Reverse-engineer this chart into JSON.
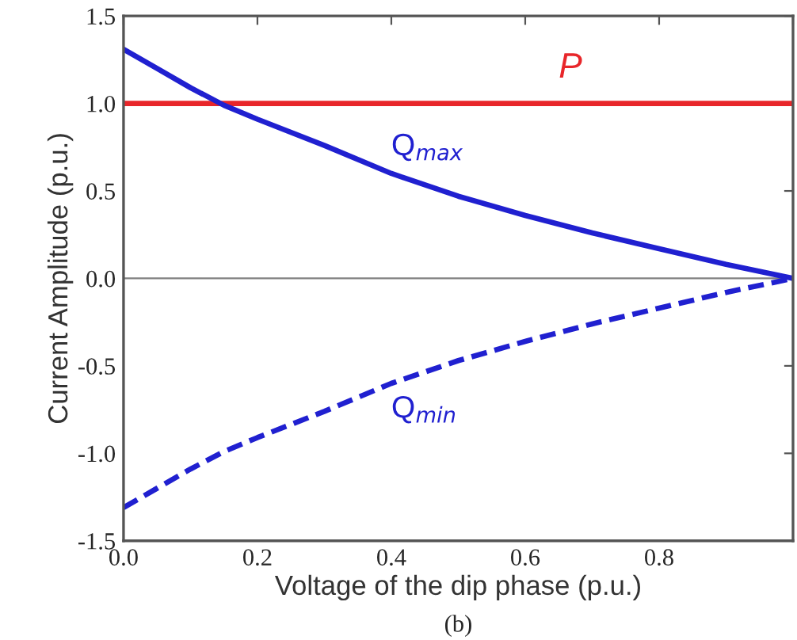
{
  "chart_data": {
    "type": "line",
    "xlabel": "Voltage of the dip phase (p.u.)",
    "ylabel": "Current Amplitude (p.u.)",
    "annotations": [
      "(b)"
    ],
    "x": [
      0,
      0.05,
      0.1,
      0.15,
      0.2,
      0.3,
      0.4,
      0.5,
      0.6,
      0.7,
      0.8,
      0.9,
      1.0
    ],
    "series": [
      {
        "name": "P",
        "color": "#e8262a",
        "line_style": "solid",
        "x": [
          0,
          0.5,
          1.0
        ],
        "values": [
          1.0,
          1.0,
          1.0
        ]
      },
      {
        "name": "Q$_{max}$",
        "color": "#2020d0",
        "line_style": "solid",
        "values": [
          1.31,
          1.2,
          1.09,
          0.99,
          0.91,
          0.76,
          0.6,
          0.47,
          0.36,
          0.26,
          0.17,
          0.08,
          0
        ]
      },
      {
        "name": "Q$_{min}$",
        "color": "#2020d0",
        "line_style": "dashed",
        "values": [
          -1.31,
          -1.2,
          -1.09,
          -0.99,
          -0.91,
          -0.76,
          -0.6,
          -0.47,
          -0.36,
          -0.26,
          -0.17,
          -0.08,
          0
        ]
      }
    ],
    "ref_lines": [
      {
        "axis": "y",
        "value": 0,
        "color": "#808080"
      }
    ],
    "xlim": [
      0,
      1.0
    ],
    "xticks": [
      {
        "value": 0,
        "label": "0.0"
      },
      0.2,
      0.4,
      0.6,
      0.8,
      {
        "value": 1.0,
        "label": null
      }
    ],
    "ylim": [
      -1.5,
      1.5
    ],
    "yticks": [
      -1.5,
      {
        "value": -1,
        "label": "-1.0"
      },
      -0.5,
      {
        "value": 0,
        "label": "0.0"
      },
      0.5,
      {
        "value": 1,
        "label": "1.0"
      },
      1.5
    ],
    "grid": false,
    "legend": false,
    "marker": "none"
  }
}
